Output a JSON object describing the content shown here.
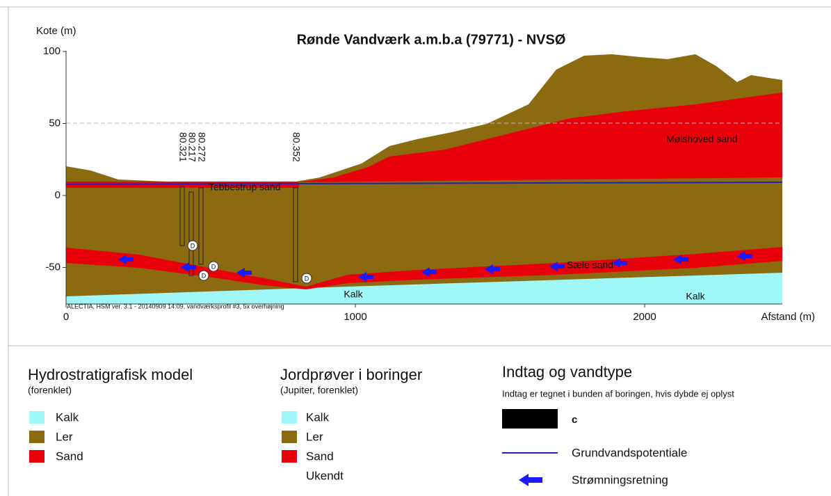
{
  "header": {
    "y_label": "Kote (m)",
    "title": "Rønde Vandværk a.m.b.a (79771) - NVSØ"
  },
  "axes": {
    "yticks": [
      100,
      50,
      0,
      -50
    ],
    "xticks": [
      0,
      1000,
      2000
    ],
    "x_label": "Afstand (m)"
  },
  "profile": {
    "credit": "ALECTIA, HSM ver. 3.1 - 20140909 14:09, vandværksprofil #3, 5x overhøjning",
    "layer_labels": [
      "Mølshoved sand",
      "Tebbestrup sand",
      "Sæle sand",
      "Kalk",
      "Kalk"
    ],
    "boreholes": [
      "80.321",
      "80.217",
      "80.272",
      "80.352"
    ],
    "intake_marks": [
      "D",
      "D",
      "D",
      "D"
    ]
  },
  "legend": {
    "groups": [
      {
        "title": "Hydrostratigrafisk model",
        "subtitle": "(forenklet)",
        "items": [
          "Kalk",
          "Ler",
          "Sand"
        ]
      },
      {
        "title": "Jordprøver i boringer",
        "subtitle": "(Jupiter, forenklet)",
        "items": [
          "Kalk",
          "Ler",
          "Sand",
          "Ukendt"
        ]
      },
      {
        "title": "Indtag og vandtype",
        "subtitle": "Indtag er tegnet i bunden af boringen, hvis dybde ej oplyst",
        "items": [
          "c",
          "Grundvandspotentiale",
          "Strømningsretning"
        ]
      }
    ]
  }
}
